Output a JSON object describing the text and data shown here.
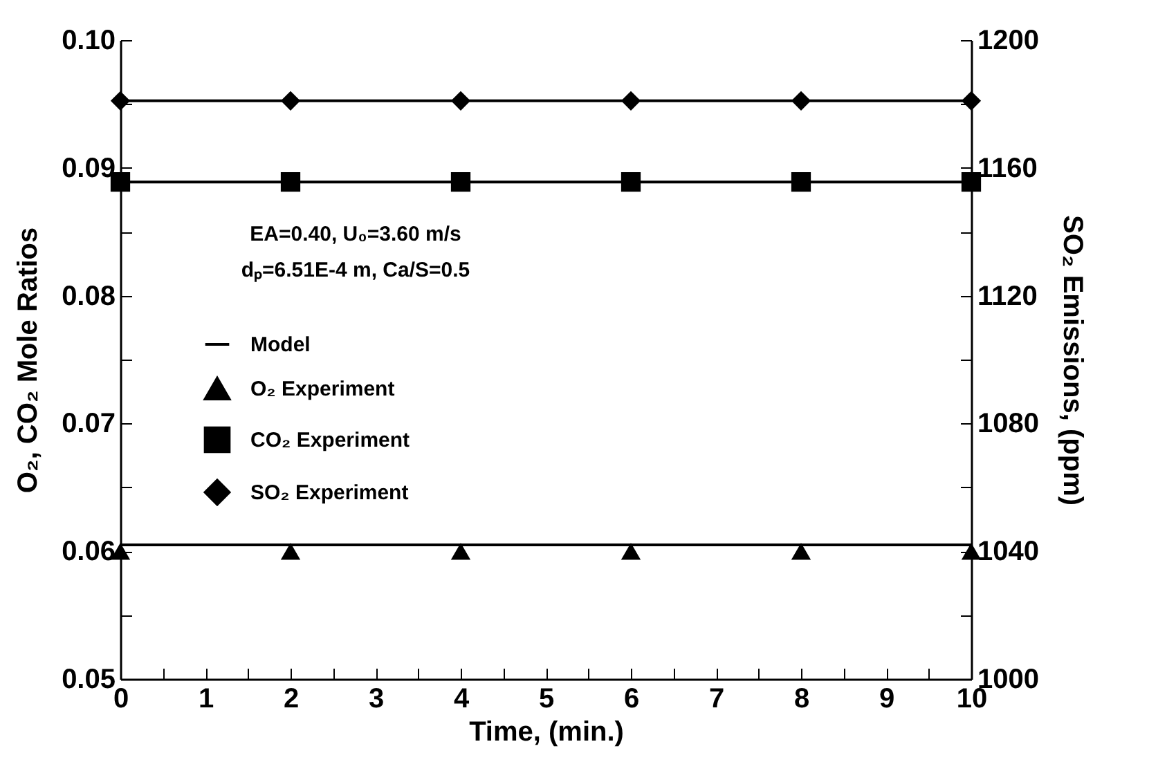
{
  "chart_data": {
    "type": "line",
    "xlabel": "Time, (min.)",
    "ylabel": "O₂, CO₂ Mole Ratios",
    "y2label": "SO₂ Emissions, (ppm)",
    "annotations": [
      "EA=0.40, U₀=3.60 m/s",
      "dₚ=6.51E-4 m, Ca/S=0.5"
    ],
    "xlim": [
      0,
      10
    ],
    "xticks": [
      0,
      {
        "value": 0.5,
        "label": null
      },
      1,
      {
        "value": 1.5,
        "label": null
      },
      2,
      {
        "value": 2.5,
        "label": null
      },
      3,
      {
        "value": 3.5,
        "label": null
      },
      4,
      {
        "value": 4.5,
        "label": null
      },
      5,
      {
        "value": 5.5,
        "label": null
      },
      6,
      {
        "value": 6.5,
        "label": null
      },
      7,
      {
        "value": 7.5,
        "label": null
      },
      8,
      {
        "value": 8.5,
        "label": null
      },
      9,
      {
        "value": 9.5,
        "label": null
      },
      10
    ],
    "ylim": [
      0.05,
      0.1
    ],
    "yticks": [
      {
        "value": 0.05,
        "label": "0.05"
      },
      {
        "value": 0.055,
        "label": null
      },
      {
        "value": 0.06,
        "label": "0.06"
      },
      {
        "value": 0.065,
        "label": null
      },
      {
        "value": 0.07,
        "label": "0.07"
      },
      {
        "value": 0.075,
        "label": null
      },
      {
        "value": 0.08,
        "label": "0.08"
      },
      {
        "value": 0.085,
        "label": null
      },
      {
        "value": 0.09,
        "label": "0.09"
      },
      {
        "value": 0.095,
        "label": null
      },
      {
        "value": 0.1,
        "label": "0.10"
      }
    ],
    "y2lim": [
      1000,
      1200
    ],
    "y2ticks": [
      1000,
      {
        "value": 1020,
        "label": null
      },
      1040,
      {
        "value": 1060,
        "label": null
      },
      1080,
      {
        "value": 1100,
        "label": null
      },
      1120,
      {
        "value": 1140,
        "label": null
      },
      1160,
      {
        "value": 1180,
        "label": null
      },
      1200
    ],
    "legend": "left",
    "grid": false,
    "series": [
      {
        "name": "Model",
        "color": "#000000",
        "x": [
          0,
          10
        ],
        "values": [
          0.0605,
          0.0605
        ]
      },
      {
        "color": "#000000",
        "x": [
          0,
          10
        ],
        "values": [
          0.0889,
          0.0889
        ]
      },
      {
        "color": "#000000",
        "axis": "y2",
        "x": [
          0,
          10
        ],
        "values": [
          1181,
          1181
        ]
      },
      {
        "name": "O₂ Experiment",
        "type": "scatter",
        "marker": "triangle",
        "color": "#000000",
        "x": [
          0,
          2,
          4,
          6,
          8,
          10
        ],
        "values": [
          0.06,
          0.06,
          0.06,
          0.06,
          0.06,
          0.06
        ]
      },
      {
        "name": "CO₂ Experiment",
        "type": "scatter",
        "marker": "square",
        "color": "#000000",
        "x": [
          0,
          2,
          4,
          6,
          8,
          10
        ],
        "values": [
          0.0889,
          0.0889,
          0.0889,
          0.0889,
          0.0889,
          0.0889
        ]
      },
      {
        "name": "SO₂ Experiment",
        "type": "scatter",
        "marker": "diamond",
        "color": "#000000",
        "axis": "y2",
        "x": [
          0,
          2,
          4,
          6,
          8,
          10
        ],
        "values": [
          1181,
          1181,
          1181,
          1181,
          1181,
          1181
        ]
      }
    ]
  }
}
